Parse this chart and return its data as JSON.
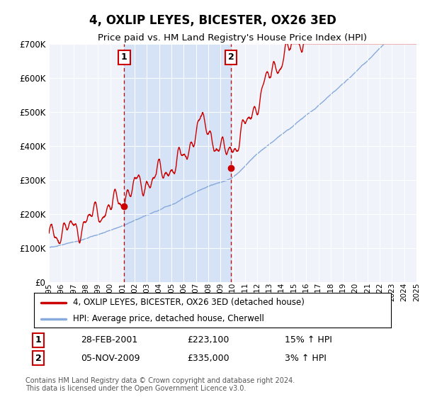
{
  "title": "4, OXLIP LEYES, BICESTER, OX26 3ED",
  "subtitle": "Price paid vs. HM Land Registry's House Price Index (HPI)",
  "footer": "Contains HM Land Registry data © Crown copyright and database right 2024.\nThis data is licensed under the Open Government Licence v3.0.",
  "ylim": [
    0,
    700000
  ],
  "yticks": [
    0,
    100000,
    200000,
    300000,
    400000,
    500000,
    600000,
    700000
  ],
  "ytick_labels": [
    "£0",
    "£100K",
    "£200K",
    "£300K",
    "£400K",
    "£500K",
    "£600K",
    "£700K"
  ],
  "line1_color": "#cc0000",
  "line2_color": "#88aadd",
  "shade_color": "#ccddf5",
  "bg_color": "#f0f4fa",
  "grid_color": "#ffffff",
  "marker1_year": 2001.15,
  "marker1_value": 223100,
  "marker1_label": "1",
  "marker1_date": "28-FEB-2001",
  "marker1_price": "£223,100",
  "marker1_hpi": "15% ↑ HPI",
  "marker2_year": 2009.85,
  "marker2_value": 335000,
  "marker2_label": "2",
  "marker2_date": "05-NOV-2009",
  "marker2_price": "£335,000",
  "marker2_hpi": "3% ↑ HPI",
  "legend_line1": "4, OXLIP LEYES, BICESTER, OX26 3ED (detached house)",
  "legend_line2": "HPI: Average price, detached house, Cherwell",
  "xmin": 1995,
  "xmax": 2025,
  "figsize": [
    6.0,
    5.6
  ],
  "dpi": 100
}
